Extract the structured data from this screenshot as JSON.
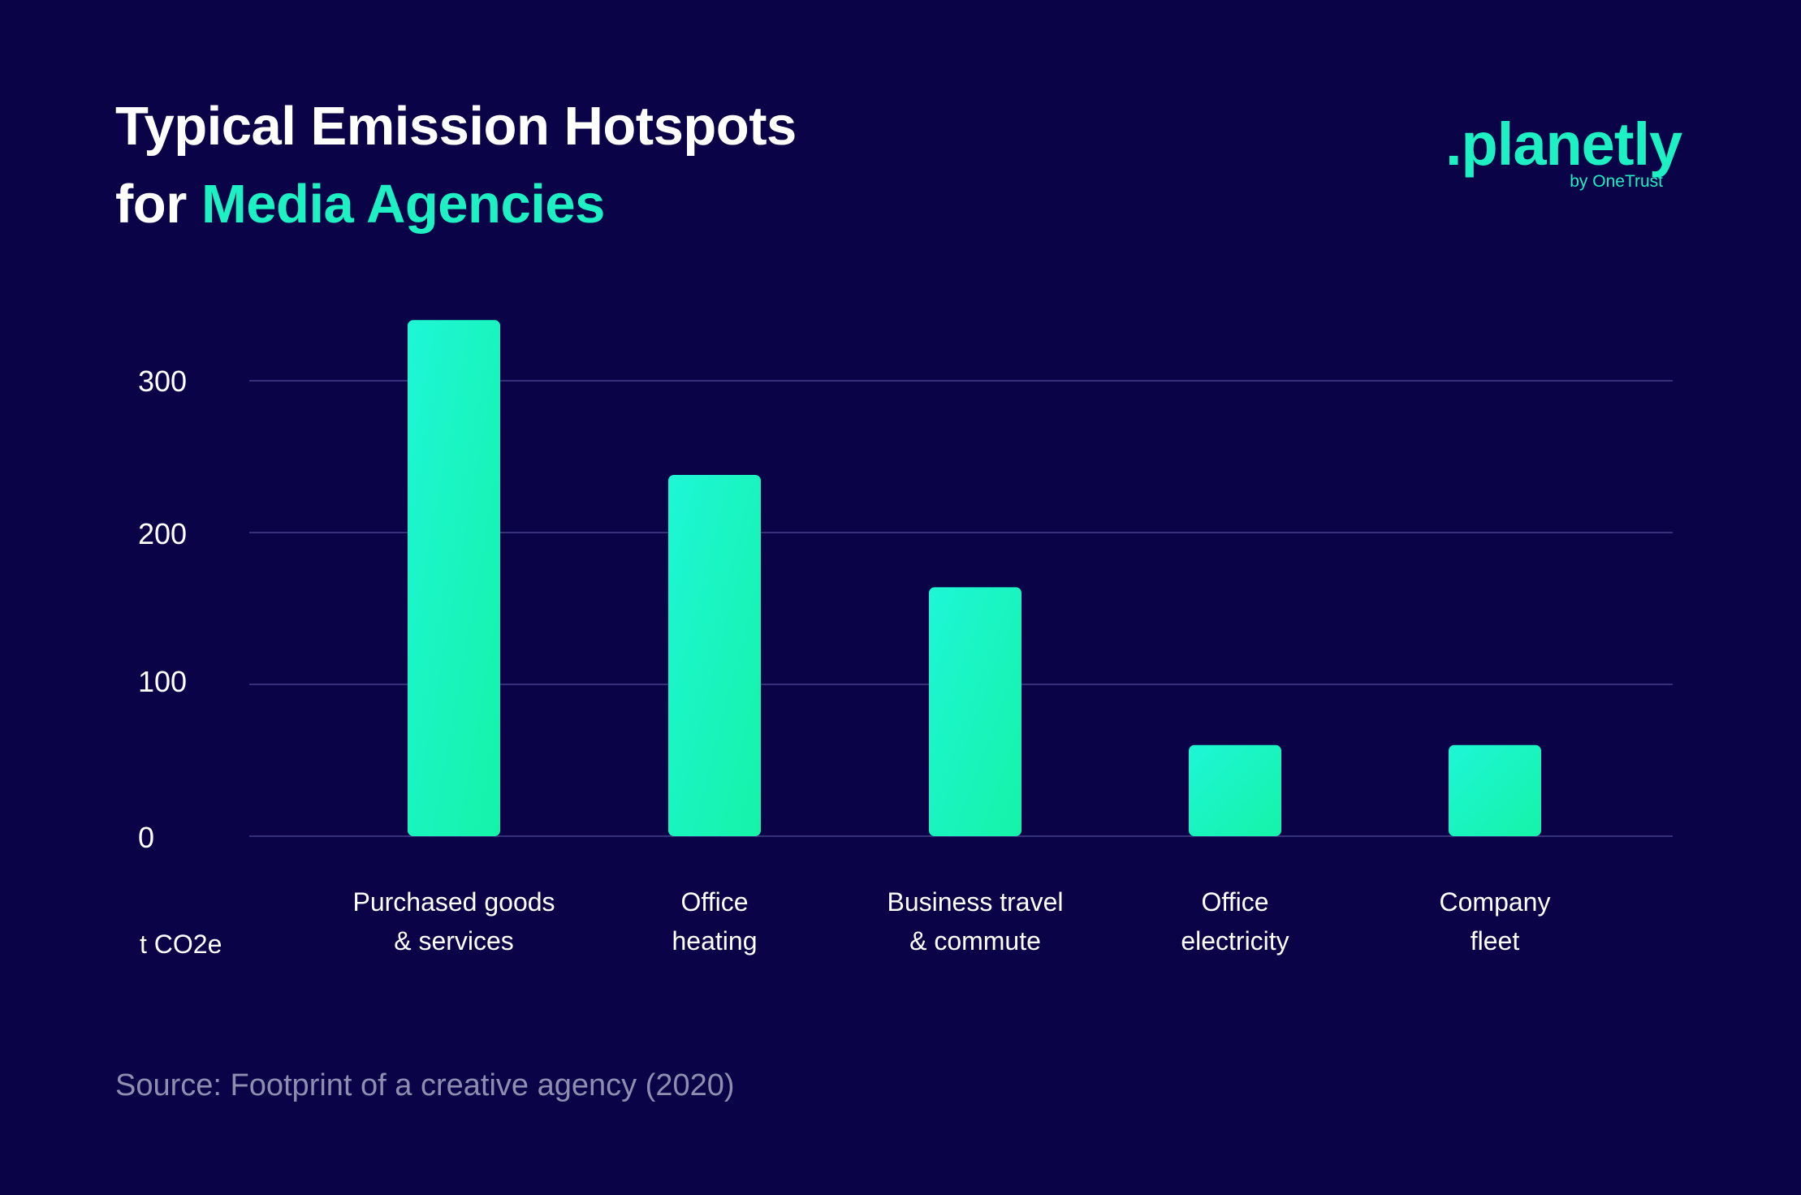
{
  "title": {
    "line1": "Typical Emission Hotspots",
    "line2_prefix": "for ",
    "line2_accent": "Media Agencies"
  },
  "logo": {
    "name": ".planetly",
    "subtitle": "by OneTrust"
  },
  "source": "Source: Footprint of a creative agency (2020)",
  "colors": {
    "background": "#0a0347",
    "accent": "#1df0c2",
    "bar_top": "#1ef6d6",
    "bar_bottom": "#15f3a8",
    "grid": "#34307a",
    "text": "#ffffff",
    "muted": "#8f8db0"
  },
  "chart_data": {
    "type": "bar",
    "title": "Typical Emission Hotspots for Media Agencies",
    "unit_label": "t CO2e",
    "categories": [
      [
        "Purchased goods",
        "& services"
      ],
      [
        "Office",
        "heating"
      ],
      [
        "Business travel",
        "& commute"
      ],
      [
        "Office",
        "electricity"
      ],
      [
        "Company",
        "fleet"
      ]
    ],
    "values": [
      340,
      238,
      164,
      60,
      60
    ],
    "yticks": [
      0,
      100,
      200,
      300
    ],
    "ylim": [
      0,
      340
    ],
    "grid": true
  }
}
